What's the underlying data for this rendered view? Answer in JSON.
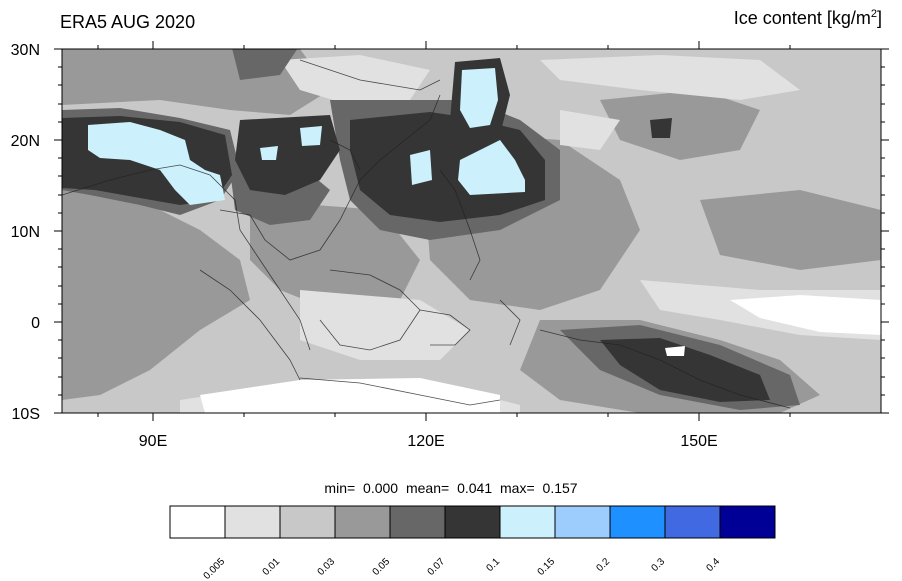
{
  "header": {
    "left_title": "ERA5 AUG 2020",
    "right_title_main": "Ice content  [kg/m",
    "right_title_sup": "2",
    "right_title_close": "]"
  },
  "map": {
    "lat_labels": [
      "30N",
      "20N",
      "10N",
      "0",
      "10S"
    ],
    "lon_labels": [
      "90E",
      "120E",
      "150E"
    ]
  },
  "stats": {
    "min_label": "min=",
    "min_value": "0.000",
    "mean_label": "mean=",
    "mean_value": "0.041",
    "max_label": "max=",
    "max_value": "0.157"
  },
  "colorbar": {
    "colors": [
      "#ffffff",
      "#e1e1e1",
      "#c8c8c8",
      "#999999",
      "#676767",
      "#353535",
      "#ccf0fc",
      "#9ccdfc",
      "#1e90ff",
      "#4169e1",
      "#000096"
    ],
    "labels": [
      "0.005",
      "0.01",
      "0.03",
      "0.05",
      "0.07",
      "0.1",
      "0.15",
      "0.2",
      "0.3",
      "0.4"
    ]
  }
}
